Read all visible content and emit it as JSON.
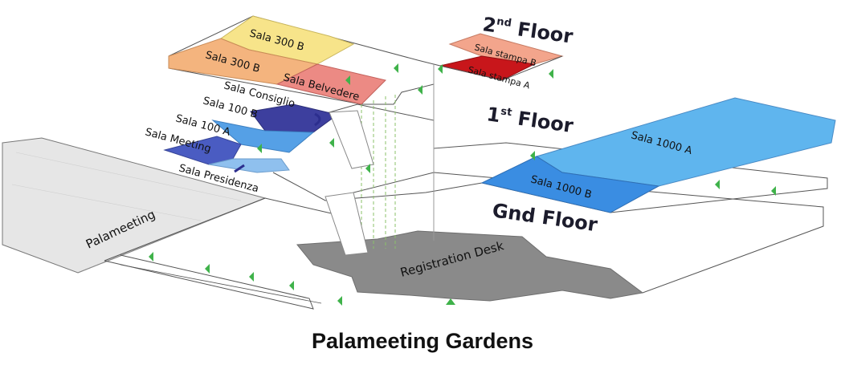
{
  "title": "Palameeting Gardens",
  "floors": {
    "second": "2",
    "second_suffix": "nd",
    "second_word": " Floor",
    "first": "1",
    "first_suffix": "st",
    "first_word": " Floor",
    "ground": "Gnd Floor"
  },
  "rooms": {
    "sala_300b_top": "Sala 300 B",
    "sala_300b": "Sala 300 B",
    "sala_belvedere": "Sala Belvedere",
    "sala_consiglio": "Sala Consiglio",
    "sala_100b": "Sala 100 B",
    "sala_100a": "Sala 100 A",
    "sala_meeting": "Sala Meeting",
    "sala_presidenza": "Sala Presidenza",
    "sala_stampa_b": "Sala stampa B",
    "sala_stampa_a": "Sala stampa A",
    "sala_1000a": "Sala 1000 A",
    "sala_1000b": "Sala 1000 B",
    "palameeting": "Palameeting",
    "registration_desk": "Registration Desk"
  },
  "colors": {
    "sala_300b_top": "#f7e48a",
    "sala_300b": "#f4b47e",
    "sala_belvedere": "#ec8a84",
    "stampa_b": "#f3a58c",
    "stampa_a": "#c8161b",
    "sala_1000a": "#5fb5ee",
    "sala_1000b": "#3a8de2",
    "consiglio": "#3d3f9e",
    "sala_100a": "#55a0e6",
    "meeting": "#4a5cc2",
    "presidenza": "#8fc0ee",
    "palameeting": "#e6e6e6",
    "registration": "#8a8a8a",
    "exit_arrow": "#3fb24a"
  }
}
